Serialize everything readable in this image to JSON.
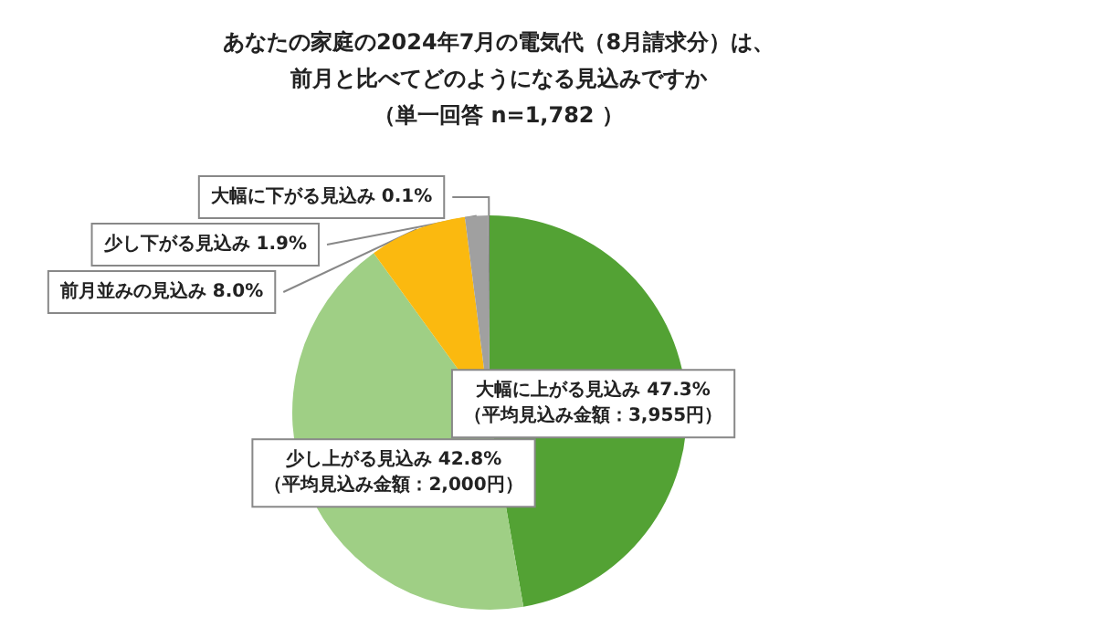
{
  "chart_data": {
    "type": "pie",
    "title": "あなたの家庭の2024年7月の電気代（8月請求分）は、",
    "subtitle": "前月と比べてどのようになる見込みですか",
    "annotations": [
      "（単一回答 n=1,782 ）"
    ],
    "categories": [
      "大幅に上がる見込み",
      "少し上がる見込み",
      "前月並みの見込み",
      "少し下がる見込み",
      "大幅に下がる見込み"
    ],
    "values": [
      47.3,
      42.8,
      8.0,
      1.9,
      0.1
    ],
    "value_labels": [
      "47.3%\n（平均見込み金額：3,955円）",
      "42.8%\n（平均見込み金額：2,000円）",
      "8.0%",
      "1.9%",
      "0.1%"
    ],
    "colors": [
      "#53a234",
      "#9fcf85",
      "#fbb90f",
      "#a0a0a0",
      "#7f7f7f"
    ],
    "legend": false
  }
}
